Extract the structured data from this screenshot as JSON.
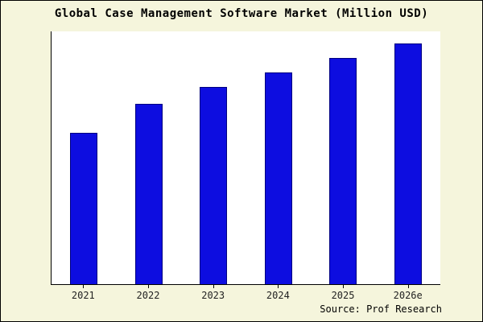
{
  "source": "Source: Prof Research",
  "colors": {
    "bar_fill": "#0d0de0",
    "bar_edge": "#000080",
    "background": "#f5f5dc",
    "plot_background": "#ffffff"
  },
  "chart_data": {
    "type": "bar",
    "title": "Global Case Management Software Market (Million USD)",
    "categories": [
      "2021",
      "2022",
      "2023",
      "2024",
      "2025",
      "2026e"
    ],
    "values": [
      63,
      75,
      82,
      88,
      94,
      100
    ],
    "xlabel": "",
    "ylabel": "",
    "ylim": [
      0,
      105
    ],
    "grid": false,
    "legend": "none"
  }
}
